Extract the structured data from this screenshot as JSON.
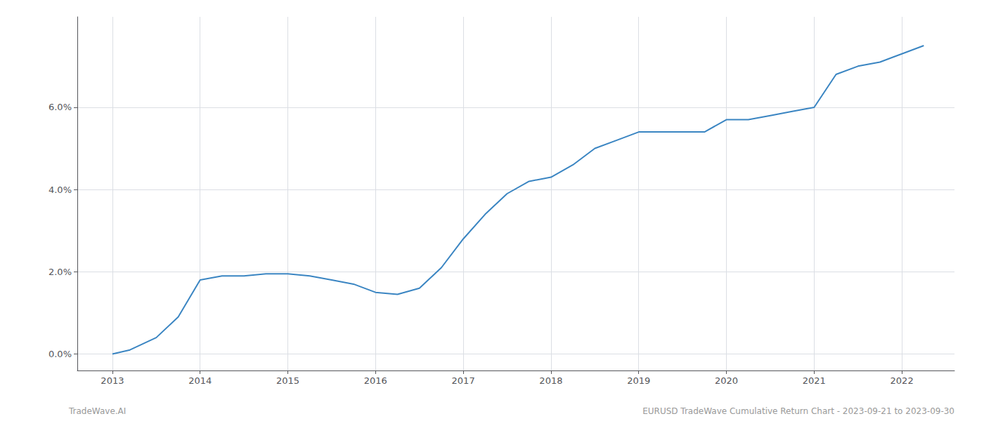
{
  "chart_data": {
    "type": "line",
    "x": [
      2013.0,
      2013.2,
      2013.5,
      2013.75,
      2014.0,
      2014.25,
      2014.5,
      2014.75,
      2015.0,
      2015.25,
      2015.5,
      2015.75,
      2016.0,
      2016.25,
      2016.5,
      2016.75,
      2017.0,
      2017.25,
      2017.5,
      2017.75,
      2018.0,
      2018.25,
      2018.5,
      2018.75,
      2019.0,
      2019.25,
      2019.5,
      2019.75,
      2020.0,
      2020.25,
      2020.5,
      2020.75,
      2021.0,
      2021.25,
      2021.5,
      2021.75,
      2022.0,
      2022.25
    ],
    "values": [
      0.0,
      0.001,
      0.004,
      0.009,
      0.018,
      0.019,
      0.019,
      0.0195,
      0.0195,
      0.019,
      0.018,
      0.017,
      0.015,
      0.0145,
      0.016,
      0.021,
      0.028,
      0.034,
      0.039,
      0.042,
      0.043,
      0.046,
      0.05,
      0.052,
      0.054,
      0.054,
      0.054,
      0.054,
      0.057,
      0.057,
      0.058,
      0.059,
      0.06,
      0.068,
      0.07,
      0.071,
      0.073,
      0.075
    ],
    "color": "#3a85c2",
    "xlim": [
      2012.6,
      2022.6
    ],
    "xticks": [
      2013,
      2014,
      2015,
      2016,
      2017,
      2018,
      2019,
      2020,
      2021,
      2022
    ],
    "ylim": [
      -0.004,
      0.082
    ],
    "yticks": [
      {
        "value": 0.0,
        "label": "0.0%"
      },
      {
        "value": 0.02,
        "label": "2.0%"
      },
      {
        "value": 0.04,
        "label": "4.0%"
      },
      {
        "value": 0.06,
        "label": "6.0%"
      }
    ],
    "grid": true,
    "annotations": [
      "TradeWave.AI",
      "EURUSD TradeWave Cumulative Return Chart - 2023-09-21 to 2023-09-30"
    ]
  }
}
